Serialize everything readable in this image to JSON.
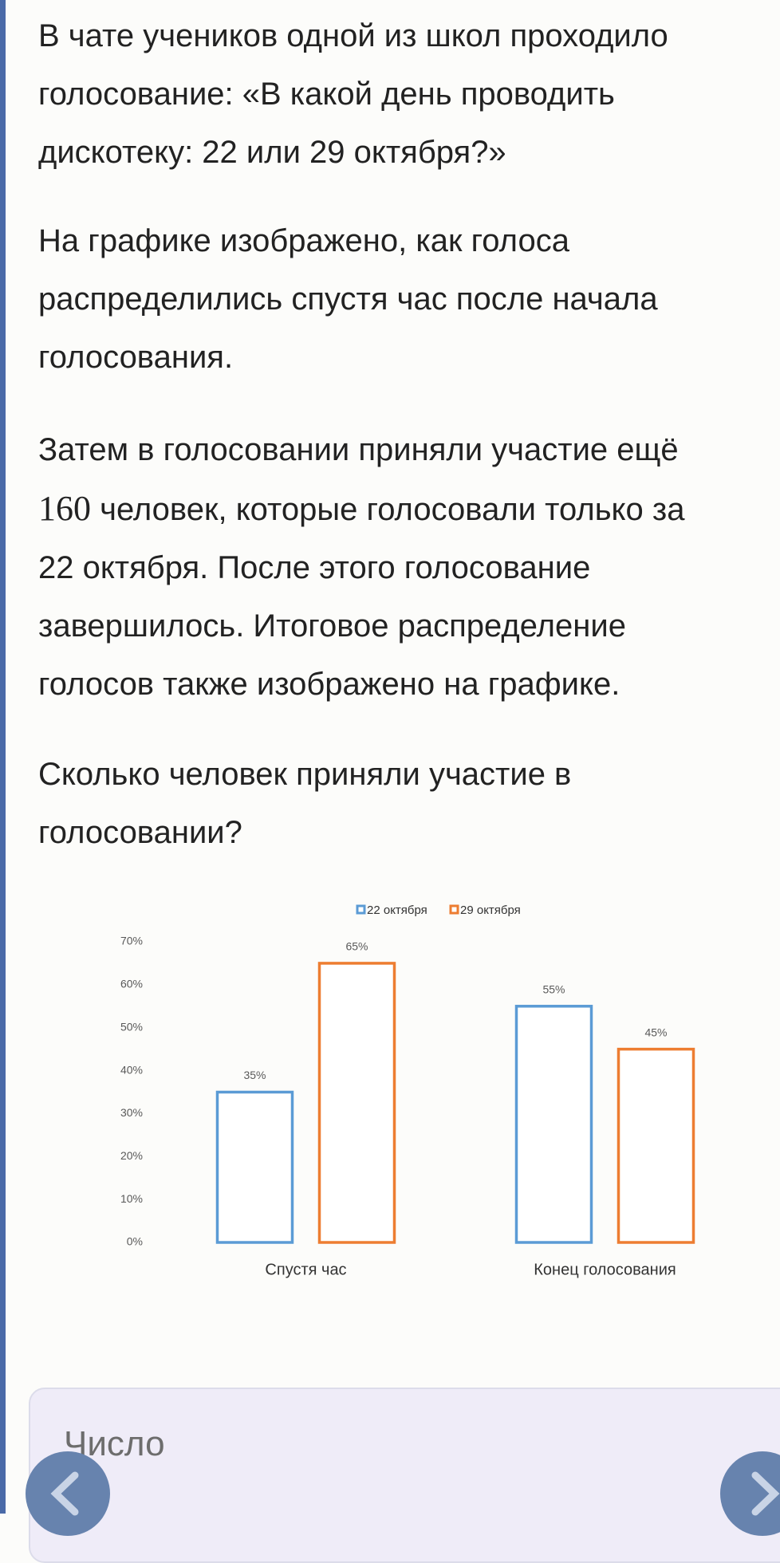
{
  "paragraphs": [
    {
      "lines": [
        "В чате учеников одной из школ проходило",
        "голосование: «В какой день проводить",
        "дискотеку: 22 или 29 октября?»"
      ]
    },
    {
      "lines": [
        "На графике изображено, как голоса",
        "распределились спустя час после начала",
        "голосования."
      ]
    },
    {
      "lines": [
        "Затем в голосовании приняли участие ещё",
        [
          "160",
          "человек, которые голосовали только за"
        ],
        "22 октября. После этого голосование",
        "завершилось. Итоговое распределение",
        "голосов также изображено на графике."
      ]
    },
    {
      "lines": [
        "Сколько человек приняли участие в",
        "голосовании?"
      ]
    }
  ],
  "chart_data": {
    "type": "bar",
    "categories": [
      "Спустя час",
      "Конец голосования"
    ],
    "series": [
      {
        "name": "22 октября",
        "color": "#5b9bd5",
        "values": [
          35,
          55
        ],
        "value_labels": [
          "35%",
          "55%"
        ]
      },
      {
        "name": "29 октября",
        "color": "#ed7d31",
        "values": [
          65,
          45
        ],
        "value_labels": [
          "65%",
          "45%"
        ]
      }
    ],
    "ylim": [
      0,
      70
    ],
    "yticks": [
      {
        "value": 0,
        "label": "0%"
      },
      {
        "value": 10,
        "label": "10%"
      },
      {
        "value": 20,
        "label": "20%"
      },
      {
        "value": 30,
        "label": "30%"
      },
      {
        "value": 40,
        "label": "40%"
      },
      {
        "value": 50,
        "label": "50%"
      },
      {
        "value": 60,
        "label": "60%"
      },
      {
        "value": 70,
        "label": "70%"
      }
    ],
    "legend": "top"
  },
  "answer_input": {
    "placeholder": "Число"
  }
}
